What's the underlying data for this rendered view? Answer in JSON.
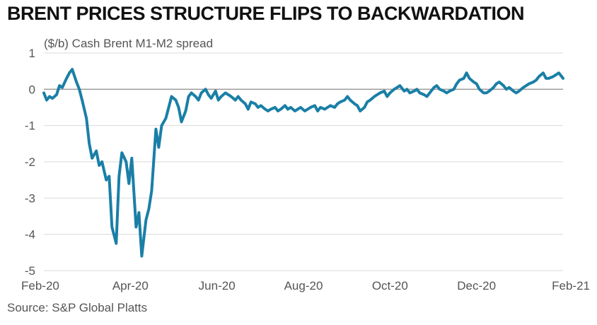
{
  "chart_data": {
    "type": "line",
    "title": "BRENT PRICES STRUCTURE FLIPS TO BACKWARDATION",
    "ylabel": "($/b) Cash Brent M1-M2 spread",
    "source": "Source: S&P Global Platts",
    "ylim": [
      -5,
      1
    ],
    "yticks": [
      1,
      0,
      -1,
      -2,
      -3,
      -4,
      -5
    ],
    "xticks": [
      "Feb-20",
      "Apr-20",
      "Jun-20",
      "Aug-20",
      "Oct-20",
      "Dec-20",
      "Feb-21"
    ],
    "grid": true,
    "colors": {
      "line": "#1a7fa6",
      "grid": "#d9d9d9",
      "zero": "#9a9a9a"
    },
    "series": [
      {
        "x": [
          "2020-02-01",
          "2020-02-03",
          "2020-02-05",
          "2020-02-07",
          "2020-02-10",
          "2020-02-12",
          "2020-02-14",
          "2020-02-17",
          "2020-02-19",
          "2020-02-21",
          "2020-02-24",
          "2020-02-26",
          "2020-02-28",
          "2020-03-02",
          "2020-03-04",
          "2020-03-06",
          "2020-03-09",
          "2020-03-11",
          "2020-03-13",
          "2020-03-16",
          "2020-03-18",
          "2020-03-20",
          "2020-03-23",
          "2020-03-25",
          "2020-03-27",
          "2020-03-30",
          "2020-04-01",
          "2020-04-03",
          "2020-04-06",
          "2020-04-08",
          "2020-04-10",
          "2020-04-13",
          "2020-04-15",
          "2020-04-17",
          "2020-04-20",
          "2020-04-22",
          "2020-04-24",
          "2020-04-27",
          "2020-04-29",
          "2020-05-01",
          "2020-05-04",
          "2020-05-06",
          "2020-05-08",
          "2020-05-11",
          "2020-05-13",
          "2020-05-15",
          "2020-05-18",
          "2020-05-20",
          "2020-05-22",
          "2020-05-25",
          "2020-05-27",
          "2020-05-29",
          "2020-06-01",
          "2020-06-03",
          "2020-06-05",
          "2020-06-08",
          "2020-06-10",
          "2020-06-12",
          "2020-06-15",
          "2020-06-17",
          "2020-06-19",
          "2020-06-22",
          "2020-06-24",
          "2020-06-26",
          "2020-06-29",
          "2020-07-01",
          "2020-07-03",
          "2020-07-06",
          "2020-07-08",
          "2020-07-10",
          "2020-07-13",
          "2020-07-15",
          "2020-07-17",
          "2020-07-20",
          "2020-07-22",
          "2020-07-24",
          "2020-07-27",
          "2020-07-29",
          "2020-07-31",
          "2020-08-03",
          "2020-08-05",
          "2020-08-07",
          "2020-08-10",
          "2020-08-12",
          "2020-08-14",
          "2020-08-17",
          "2020-08-19",
          "2020-08-21",
          "2020-08-24",
          "2020-08-26",
          "2020-08-28",
          "2020-08-31",
          "2020-09-02",
          "2020-09-04",
          "2020-09-07",
          "2020-09-09",
          "2020-09-11",
          "2020-09-14",
          "2020-09-16",
          "2020-09-18",
          "2020-09-21",
          "2020-09-23",
          "2020-09-25",
          "2020-09-28",
          "2020-09-30",
          "2020-10-02",
          "2020-10-05",
          "2020-10-07",
          "2020-10-09",
          "2020-10-12",
          "2020-10-14",
          "2020-10-16",
          "2020-10-19",
          "2020-10-21",
          "2020-10-23",
          "2020-10-26",
          "2020-10-28",
          "2020-10-30",
          "2020-11-02",
          "2020-11-04",
          "2020-11-06",
          "2020-11-09",
          "2020-11-11",
          "2020-11-13",
          "2020-11-16",
          "2020-11-18",
          "2020-11-20",
          "2020-11-23",
          "2020-11-25",
          "2020-11-27",
          "2020-11-30",
          "2020-12-02",
          "2020-12-04",
          "2020-12-07",
          "2020-12-09",
          "2020-12-11",
          "2020-12-14",
          "2020-12-16",
          "2020-12-18",
          "2020-12-21",
          "2020-12-23",
          "2020-12-25",
          "2020-12-28",
          "2020-12-30",
          "2021-01-01",
          "2021-01-04",
          "2021-01-06",
          "2021-01-08",
          "2021-01-11",
          "2021-01-13",
          "2021-01-15",
          "2021-01-18",
          "2021-01-20",
          "2021-01-22",
          "2021-01-25",
          "2021-01-27",
          "2021-01-29",
          "2021-02-01"
        ],
        "values": [
          -0.1,
          -0.3,
          -0.2,
          -0.25,
          -0.15,
          0.1,
          0.05,
          0.3,
          0.45,
          0.55,
          0.2,
          0.0,
          -0.3,
          -0.8,
          -1.5,
          -1.9,
          -1.7,
          -2.1,
          -2.0,
          -2.5,
          -2.4,
          -3.8,
          -4.25,
          -2.4,
          -1.75,
          -2.0,
          -2.6,
          -1.9,
          -3.8,
          -3.4,
          -4.6,
          -3.6,
          -3.3,
          -2.8,
          -1.1,
          -1.6,
          -1.0,
          -0.8,
          -0.5,
          -0.2,
          -0.3,
          -0.5,
          -0.9,
          -0.6,
          -0.2,
          -0.1,
          -0.2,
          -0.3,
          -0.1,
          0.0,
          -0.15,
          -0.25,
          -0.05,
          -0.3,
          -0.2,
          -0.1,
          -0.15,
          -0.2,
          -0.3,
          -0.2,
          -0.3,
          -0.4,
          -0.55,
          -0.35,
          -0.4,
          -0.5,
          -0.45,
          -0.55,
          -0.6,
          -0.55,
          -0.5,
          -0.6,
          -0.55,
          -0.45,
          -0.55,
          -0.5,
          -0.6,
          -0.55,
          -0.5,
          -0.6,
          -0.55,
          -0.5,
          -0.45,
          -0.6,
          -0.5,
          -0.55,
          -0.5,
          -0.45,
          -0.5,
          -0.4,
          -0.35,
          -0.3,
          -0.2,
          -0.3,
          -0.4,
          -0.45,
          -0.6,
          -0.5,
          -0.35,
          -0.3,
          -0.2,
          -0.15,
          -0.1,
          -0.05,
          -0.2,
          -0.1,
          0.0,
          0.05,
          0.1,
          -0.05,
          0.0,
          -0.1,
          -0.05,
          0.0,
          -0.1,
          -0.15,
          -0.2,
          -0.1,
          0.05,
          0.1,
          0.0,
          -0.05,
          -0.1,
          -0.05,
          0.0,
          0.15,
          0.25,
          0.3,
          0.45,
          0.3,
          0.2,
          0.15,
          0.0,
          -0.1,
          -0.1,
          -0.05,
          0.05,
          0.15,
          0.2,
          0.1,
          0.0,
          0.05,
          -0.05,
          -0.1,
          -0.05,
          0.05,
          0.1,
          0.15,
          0.2,
          0.25,
          0.35,
          0.45,
          0.3,
          0.3,
          0.35,
          0.4,
          0.45,
          0.3
        ]
      }
    ]
  }
}
